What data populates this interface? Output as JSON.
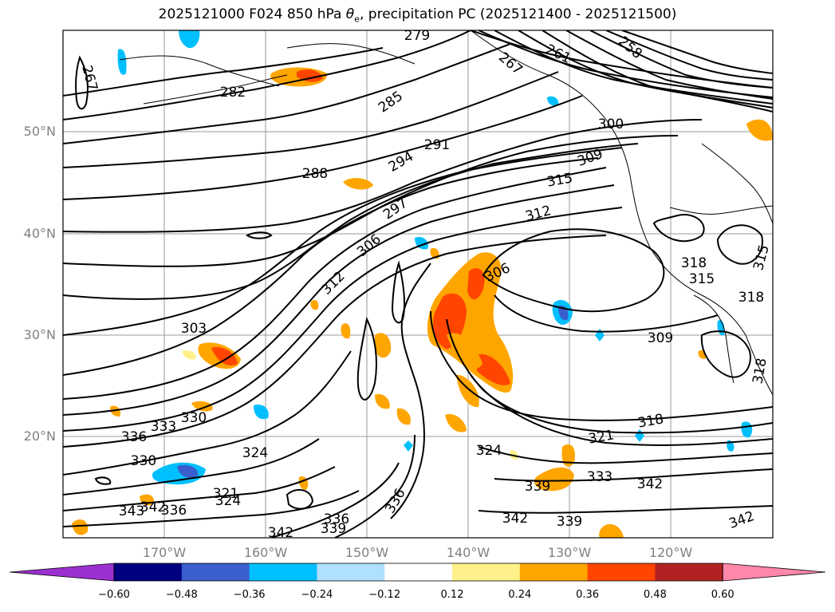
{
  "title": {
    "prefix": "2025121000 F024 850 hPa ",
    "theta": "θ",
    "theta_sub": "e",
    "suffix": ", precipitation PC (2025121400 - 2025121500)"
  },
  "axes": {
    "lat_ticks": [
      "50°N",
      "40°N",
      "30°N",
      "20°N"
    ],
    "lon_ticks": [
      "170°W",
      "160°W",
      "150°W",
      "140°W",
      "130°W",
      "120°W"
    ]
  },
  "colorbar": {
    "colors": [
      "#9b30d0",
      "#000080",
      "#3a5fcd",
      "#00bfff",
      "#b0e0ff",
      "#ffffff",
      "#fff08a",
      "#ffa500",
      "#ff4500",
      "#b22222",
      "#ff88aa"
    ],
    "labels": [
      "−0.60",
      "−0.48",
      "−0.36",
      "−0.24",
      "−0.12",
      "0.12",
      "0.24",
      "0.36",
      "0.48",
      "0.60"
    ]
  },
  "contour_labels": [
    {
      "text": "279"
    },
    {
      "text": "258"
    },
    {
      "text": "261"
    },
    {
      "text": "267"
    },
    {
      "text": "282"
    },
    {
      "text": "285"
    },
    {
      "text": "267"
    },
    {
      "text": "300"
    },
    {
      "text": "291"
    },
    {
      "text": "288"
    },
    {
      "text": "294"
    },
    {
      "text": "309"
    },
    {
      "text": "315"
    },
    {
      "text": "297"
    },
    {
      "text": "312"
    },
    {
      "text": "306"
    },
    {
      "text": "318"
    },
    {
      "text": "315"
    },
    {
      "text": "318"
    },
    {
      "text": "306"
    },
    {
      "text": "312"
    },
    {
      "text": "303"
    },
    {
      "text": "309"
    },
    {
      "text": "333"
    },
    {
      "text": "330"
    },
    {
      "text": "336"
    },
    {
      "text": "330"
    },
    {
      "text": "324"
    },
    {
      "text": "324"
    },
    {
      "text": "321"
    },
    {
      "text": "318"
    },
    {
      "text": "339"
    },
    {
      "text": "333"
    },
    {
      "text": "342"
    },
    {
      "text": "343"
    },
    {
      "text": "342"
    },
    {
      "text": "336"
    },
    {
      "text": "324"
    },
    {
      "text": "321"
    },
    {
      "text": "336"
    },
    {
      "text": "342"
    },
    {
      "text": "339"
    },
    {
      "text": "342"
    },
    {
      "text": "336"
    },
    {
      "text": "339"
    },
    {
      "text": "342"
    },
    {
      "text": "315"
    },
    {
      "text": "318"
    }
  ]
}
